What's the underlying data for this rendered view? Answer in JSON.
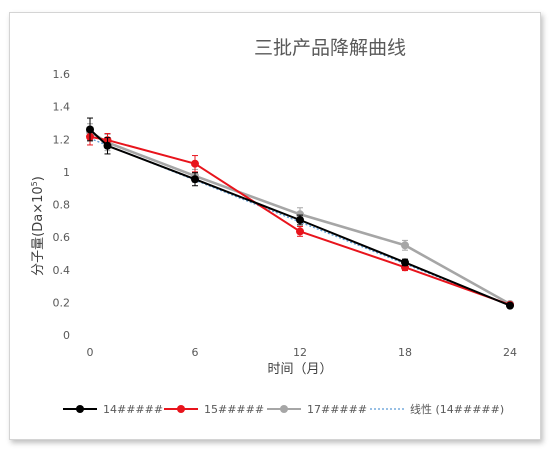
{
  "chart_data": {
    "type": "line",
    "title": "三批产品降解曲线",
    "xlabel": "时间（月）",
    "ylabel_prefix": "分子量(Da",
    "ylabel_multiply": "×10",
    "ylabel_sup": "5",
    "ylabel_suffix": ")",
    "x_ticks": [
      0,
      6,
      12,
      18,
      24
    ],
    "x_tick_labels": [
      "0",
      "6",
      "12",
      "18",
      "24"
    ],
    "y_ticks": [
      0,
      0.2,
      0.4,
      0.6,
      0.8,
      1,
      1.2,
      1.4,
      1.6
    ],
    "y_tick_labels": [
      "0",
      "0.2",
      "0.4",
      "0.6",
      "0.8",
      "1",
      "1.2",
      "1.4",
      "1.6"
    ],
    "xlim": [
      0,
      24
    ],
    "ylim": [
      0,
      1.6
    ],
    "grid": false,
    "legend_position": "bottom",
    "series": [
      {
        "name": "14#####",
        "color": "#000000",
        "x": [
          0,
          1,
          6,
          12,
          18,
          24
        ],
        "y": [
          1.26,
          1.16,
          0.955,
          0.705,
          0.445,
          0.18
        ],
        "err": [
          0.07,
          0.05,
          0.04,
          0.03,
          0.02,
          0.01
        ]
      },
      {
        "name": "15#####",
        "color": "#e8141c",
        "x": [
          0,
          1,
          6,
          12,
          18,
          24
        ],
        "y": [
          1.215,
          1.195,
          1.05,
          0.635,
          0.415,
          0.185
        ],
        "err": [
          0.05,
          0.04,
          0.05,
          0.03,
          0.02,
          0.01
        ]
      },
      {
        "name": "17#####",
        "color": "#a6a6a6",
        "x": [
          0,
          1,
          6,
          12,
          18,
          24
        ],
        "y": [
          1.245,
          1.18,
          0.975,
          0.74,
          0.55,
          0.19
        ],
        "err": [
          0.05,
          0.05,
          0.04,
          0.04,
          0.03,
          0.01
        ]
      }
    ],
    "trendline": {
      "name": "线性 (14#####)",
      "color": "#5b9bd5",
      "x": [
        0,
        24
      ],
      "y": [
        1.205,
        0.18
      ]
    }
  }
}
